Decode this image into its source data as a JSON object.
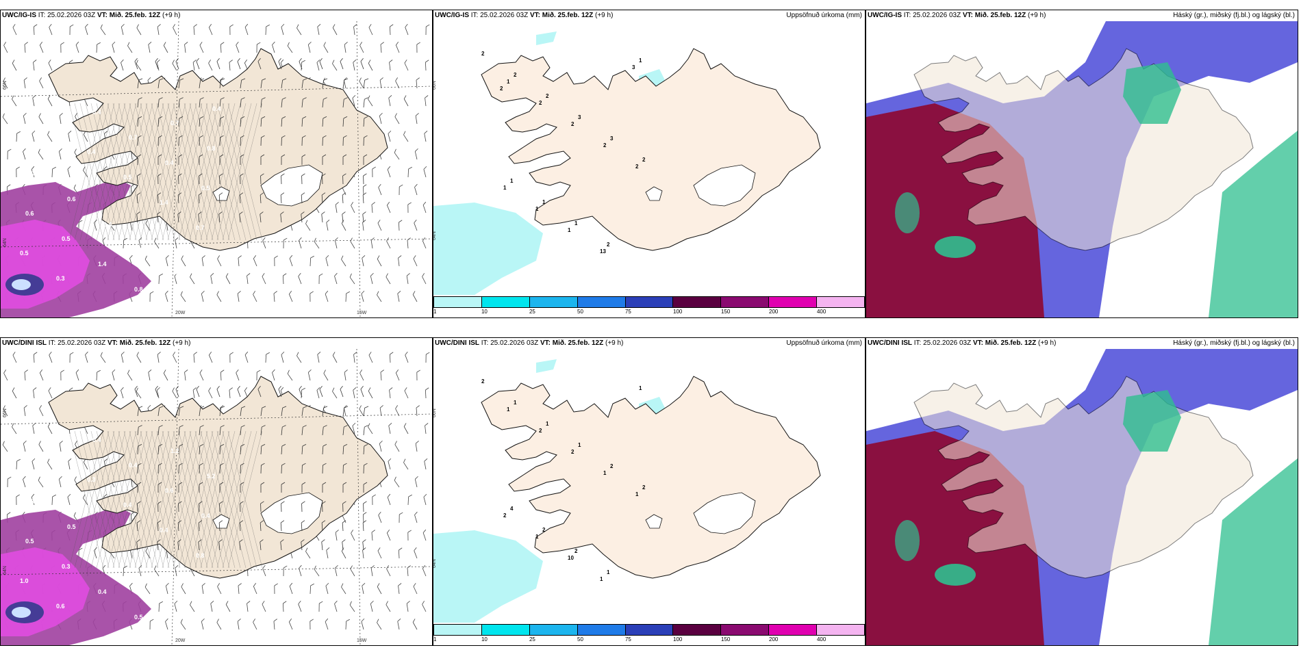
{
  "rows": [
    {
      "model": "UWC/IG-IS",
      "wind_panel": {
        "model": "UWC/IG-IS",
        "it": "IT: 25.02.2026 03Z",
        "vt": "VT: Mið. 25.feb. 12Z",
        "lead": "(+9 h)",
        "lat_labels": [
          "66N",
          "64N"
        ],
        "lon_labels": [
          "20W",
          "15W"
        ],
        "precip_labels": [
          "0.4",
          "0.4",
          "0.4",
          "0.5",
          "1.4",
          "0.7",
          "0.5",
          "0.3",
          "0.4",
          "0.7",
          "0.4",
          "0.5",
          "0.6",
          "0.5",
          "1.4",
          "0.8",
          "0.7",
          "0.8",
          "0.8",
          "0.6",
          "0.4",
          "10.8",
          "0.5",
          "0.4"
        ]
      },
      "accum_panel": {
        "model": "UWC/IG-IS",
        "it": "IT: 25.02.2026 03Z",
        "vt": "VT: Mið. 25.feb. 12Z",
        "lead": "(+9 h)",
        "title_right": "Uppsöfnuð úrkoma (mm)",
        "lat_labels": [
          "66N",
          "64N"
        ],
        "amount_labels": [
          "2",
          "2",
          "2",
          "3",
          "3",
          "2",
          "1",
          "1",
          "1",
          "2",
          "1",
          "1",
          "2",
          "2",
          "2",
          "2",
          "1",
          "1",
          "1",
          "13",
          "3",
          "2"
        ]
      },
      "cloud_panel": {
        "model": "UWC/IG-IS",
        "it": "IT: 25.02.2026 03Z",
        "vt": "VT: Mið. 25.feb. 12Z",
        "lead": "(+9 h)",
        "title_right": "Háský (gr.), miðský (fj.bl.) og lágský (bl.)"
      }
    },
    {
      "model": "UWC/DINI ISL",
      "wind_panel": {
        "model": "UWC/DINI ISL",
        "it": "IT: 25.02.2026 03Z",
        "vt": "VT: Mið. 25.feb. 12Z",
        "lead": "(+9 h)",
        "lat_labels": [
          "66N",
          "64N"
        ],
        "lon_labels": [
          "20W",
          "15W"
        ],
        "precip_labels": [
          "1.3",
          "0.3",
          "0.3",
          "0.4",
          "0.4",
          "0.8",
          "1.0",
          "0.6",
          "0.4",
          "0.4",
          "0.6",
          "0.4",
          "0.5",
          "0.3",
          "0.4",
          "0.5",
          "1.2",
          "5.2",
          "3.9",
          "0.5"
        ]
      },
      "accum_panel": {
        "model": "UWC/DINI ISL",
        "it": "IT: 25.02.2026 03Z",
        "vt": "VT: Mið. 25.feb. 12Z",
        "lead": "(+9 h)",
        "title_right": "Uppsöfnuð úrkoma (mm)",
        "lat_labels": [
          "66N",
          "64N"
        ],
        "amount_labels": [
          "2",
          "1",
          "1",
          "1",
          "2",
          "2",
          "4",
          "2",
          "2",
          "1",
          "1",
          "1",
          "2",
          "2",
          "1",
          "1",
          "2",
          "1",
          "10",
          "1"
        ]
      },
      "cloud_panel": {
        "model": "UWC/DINI ISL",
        "it": "IT: 25.02.2026 03Z",
        "vt": "VT: Mið. 25.feb. 12Z",
        "lead": "(+9 h)",
        "title_right": "Háský (gr.), miðský (fj.bl.) og lágský (bl.)"
      }
    }
  ],
  "legend": {
    "ticks": [
      "1",
      "10",
      "25",
      "50",
      "75",
      "100",
      "150",
      "200",
      "400"
    ],
    "colors": [
      "#b9f6f6",
      "#00e5ee",
      "#1cb5ee",
      "#1f7be8",
      "#2b3fb8",
      "#5a0040",
      "#8a0a70",
      "#e000b0",
      "#f4b4f0"
    ]
  },
  "colors": {
    "land": "#f2e6d6",
    "land_light": "#fcefe3",
    "glacier": "#ffffff",
    "precip_purple": "#a040a0",
    "precip_magenta": "#e04ce0",
    "cloud_high": "#2fbf8f",
    "cloud_mid": "#4a4ad8",
    "cloud_low": "#8a1040"
  }
}
